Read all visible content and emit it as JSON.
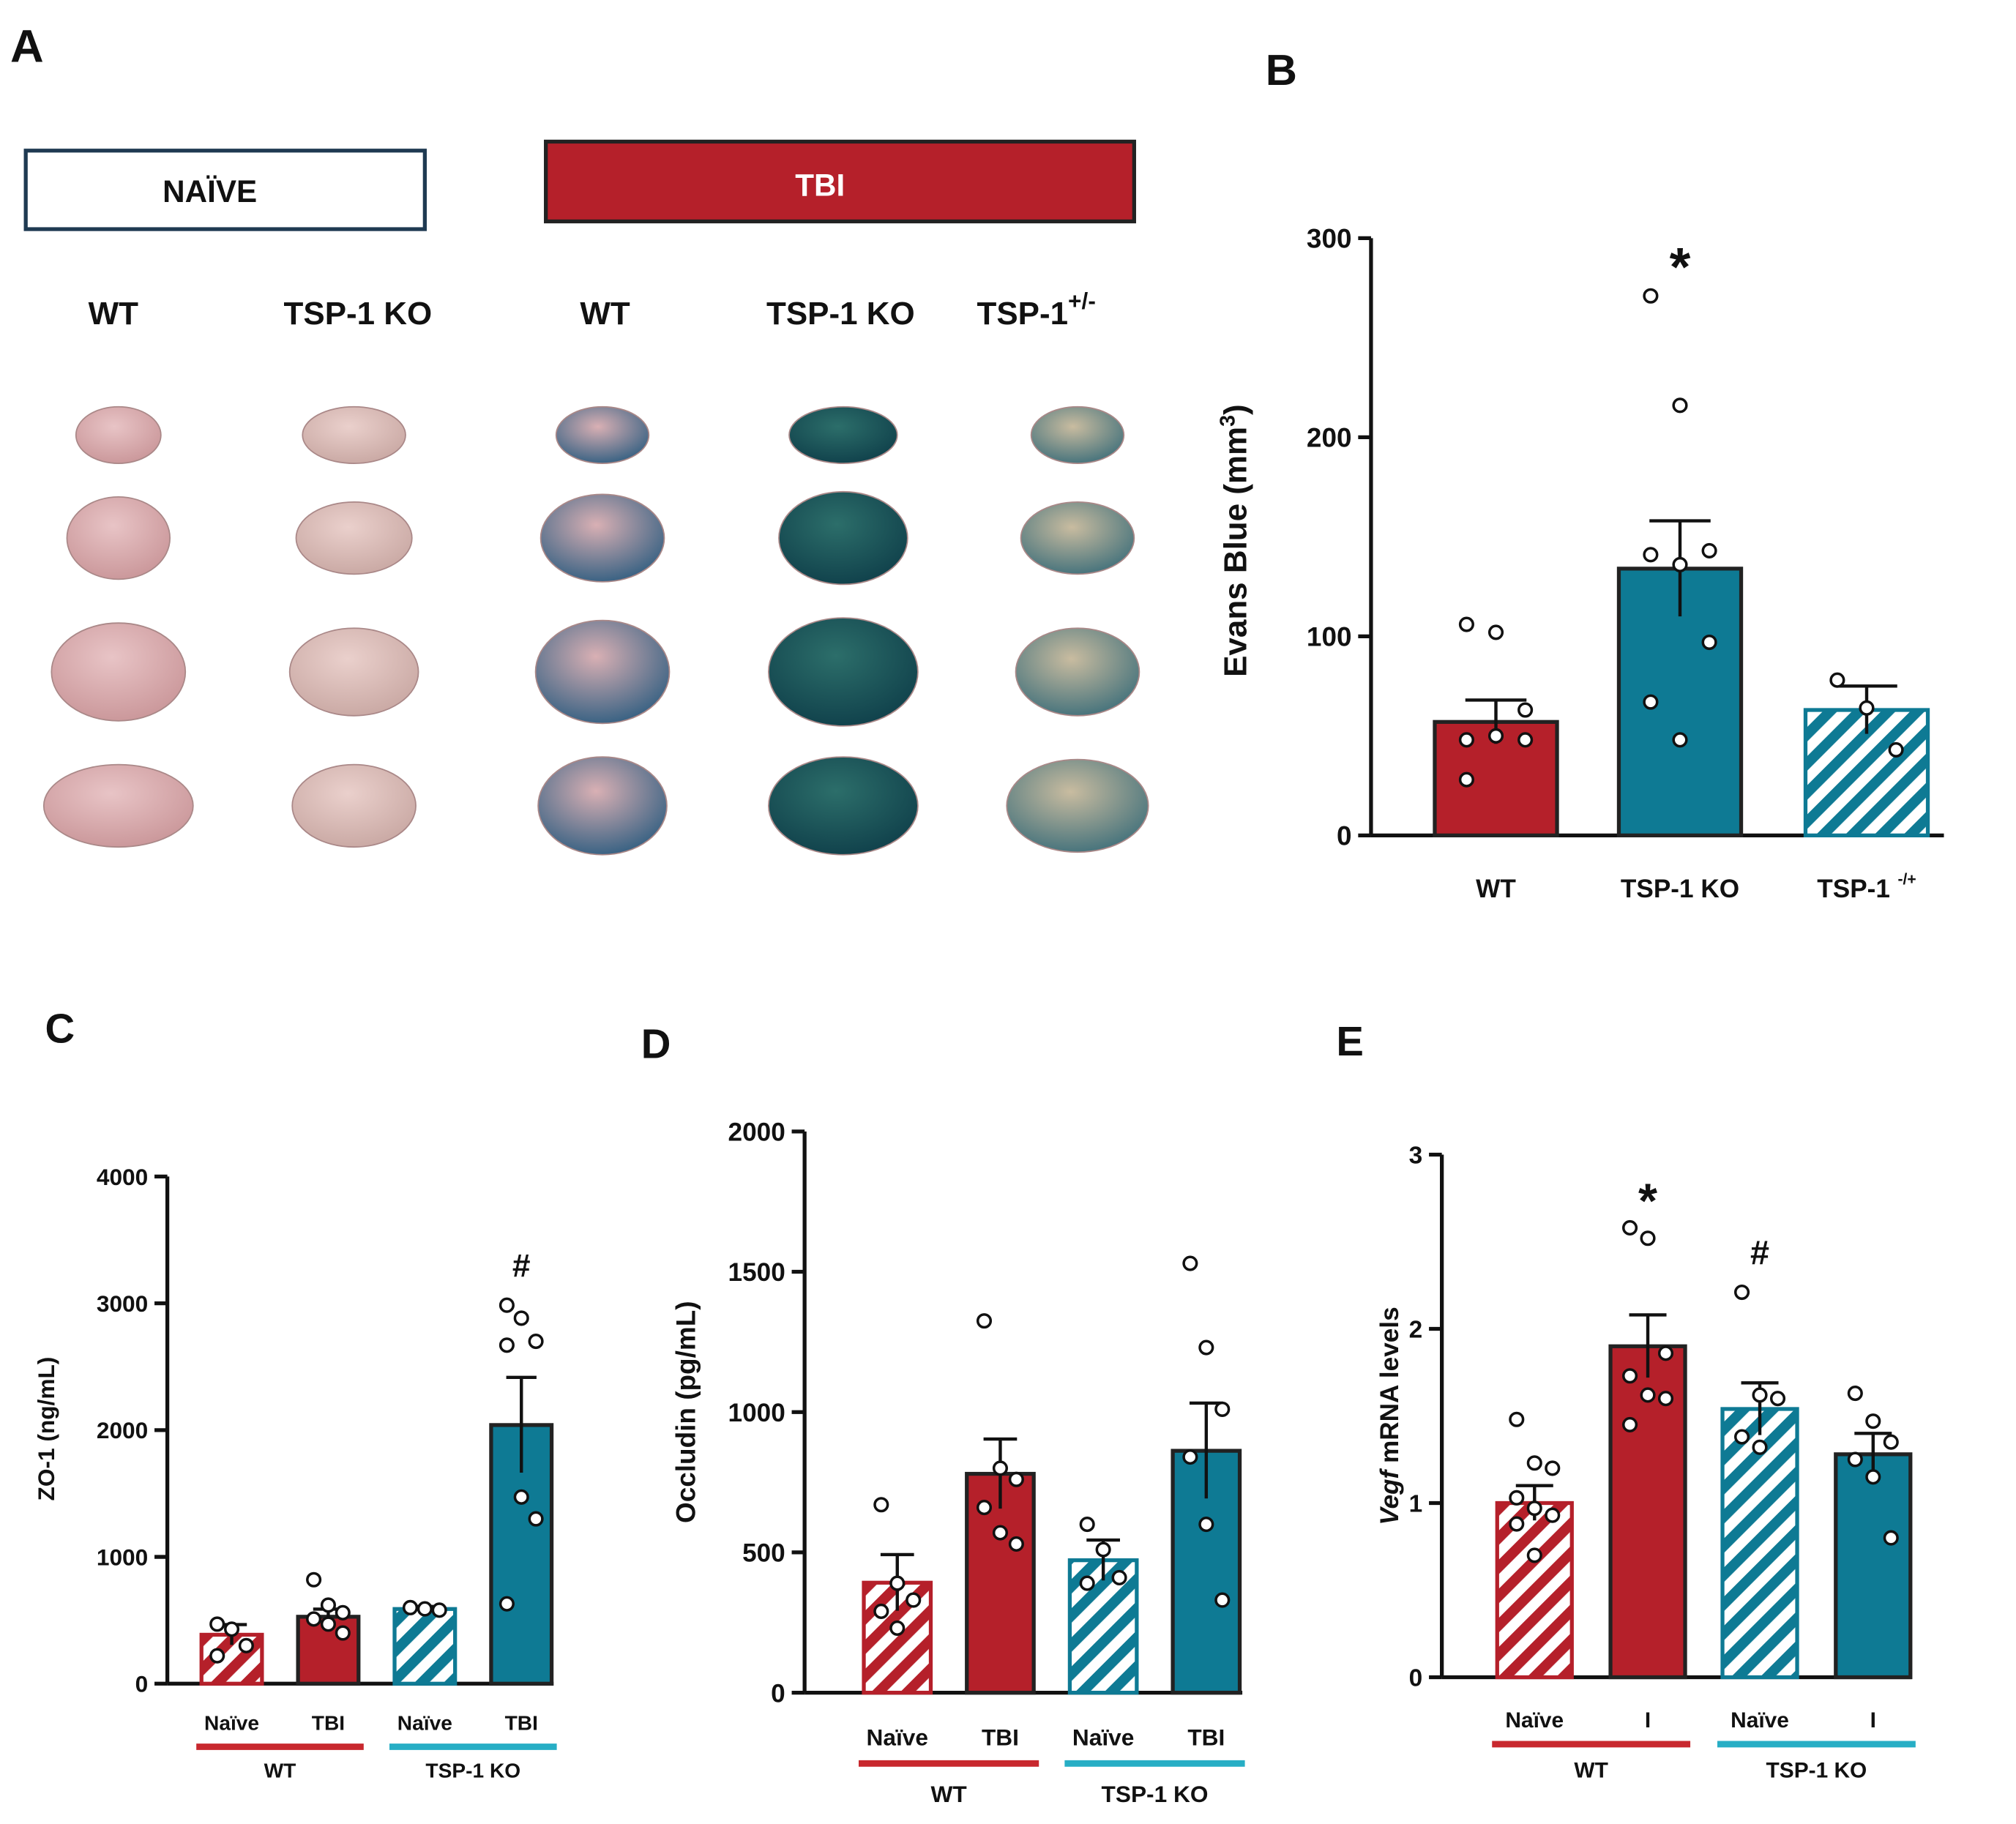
{
  "panel_a": {
    "label": "A",
    "naive_header": "NAÏVE",
    "tbi_header": "TBI",
    "columns": [
      "WT",
      "TSP-1 KO",
      "WT",
      "TSP-1 KO",
      "TSP-1"
    ],
    "column_sups": [
      null,
      null,
      null,
      null,
      "+/-"
    ]
  },
  "chart_data": [
    {
      "type": "bar",
      "panel": "B",
      "ylabel_parts": [
        {
          "text": "Evans Blue (mm"
        },
        {
          "text": "3",
          "sup": true
        },
        {
          "text": ")"
        }
      ],
      "categories": [
        "WT",
        "TSP-1 KO",
        "TSP-1"
      ],
      "category_sups": [
        null,
        null,
        "-/+"
      ],
      "values": [
        57,
        134,
        63
      ],
      "errors": [
        11,
        24,
        12
      ],
      "points": [
        [
          106,
          102,
          63,
          48,
          50,
          48,
          28
        ],
        [
          271,
          216,
          143,
          141,
          136,
          97,
          67,
          48
        ],
        [
          78,
          64,
          43
        ]
      ],
      "colors": [
        "#b5202a",
        "#0e7a94",
        "#0e7a94"
      ],
      "hatched": [
        false,
        false,
        true
      ],
      "annotations": [
        {
          "text": "*",
          "category": 1
        }
      ],
      "ylim": [
        0,
        300
      ],
      "yticks": [
        0,
        100,
        200,
        300
      ]
    },
    {
      "type": "bar",
      "panel": "C",
      "ylabel_parts": [
        {
          "text": "ZO-1 (ng/mL)"
        }
      ],
      "categories": [
        "Naïve",
        "TBI",
        "Naïve",
        "TBI"
      ],
      "values": [
        386,
        528,
        589,
        2040
      ],
      "errors": [
        80,
        60,
        20,
        376
      ],
      "points": [
        [
          470,
          430,
          300,
          220
        ],
        [
          820,
          620,
          560,
          510,
          470,
          400
        ],
        [
          600,
          590,
          580
        ],
        [
          2985,
          2883,
          2700,
          2670,
          1472,
          1300,
          630
        ]
      ],
      "colors": [
        "#b5202a",
        "#b5202a",
        "#0e7a94",
        "#0e7a94"
      ],
      "hatched": [
        true,
        false,
        true,
        false
      ],
      "annotations": [
        {
          "text": "#",
          "category": 3
        }
      ],
      "groups": [
        {
          "label": "WT",
          "span": [
            0,
            1
          ],
          "color": "#c8282e"
        },
        {
          "label": "TSP-1 KO",
          "span": [
            2,
            3
          ],
          "color": "#27aec5"
        }
      ],
      "ylim": [
        0,
        4000
      ],
      "yticks": [
        0,
        1000,
        2000,
        3000,
        4000
      ]
    },
    {
      "type": "bar",
      "panel": "D",
      "ylabel_parts": [
        {
          "text": "Occludin (pg/mL)"
        }
      ],
      "categories": [
        "Naïve",
        "TBI",
        "Naïve",
        "TBI"
      ],
      "values": [
        392,
        780,
        472,
        862
      ],
      "errors": [
        100,
        124,
        72,
        170
      ],
      "points": [
        [
          670,
          390,
          330,
          290,
          230
        ],
        [
          1325,
          800,
          760,
          660,
          570,
          530
        ],
        [
          600,
          510,
          410,
          390
        ],
        [
          1530,
          1230,
          1010,
          840,
          600,
          330
        ]
      ],
      "colors": [
        "#b5202a",
        "#b5202a",
        "#0e7a94",
        "#0e7a94"
      ],
      "hatched": [
        true,
        false,
        true,
        false
      ],
      "groups": [
        {
          "label": "WT",
          "span": [
            0,
            1
          ],
          "color": "#c8282e"
        },
        {
          "label": "TSP-1 KO",
          "span": [
            2,
            3
          ],
          "color": "#27aec5"
        }
      ],
      "ylim": [
        0,
        2000
      ],
      "yticks": [
        0,
        500,
        1000,
        1500,
        2000
      ]
    },
    {
      "type": "bar",
      "panel": "E",
      "ylabel_parts": [
        {
          "text": "Vegf",
          "italic": true
        },
        {
          "text": " mRNA levels"
        }
      ],
      "categories": [
        "Naïve",
        "I",
        "Naïve",
        "I"
      ],
      "values": [
        1.0,
        1.9,
        1.54,
        1.28
      ],
      "errors": [
        0.1,
        0.18,
        0.15,
        0.12
      ],
      "points": [
        [
          1.48,
          1.23,
          1.2,
          1.03,
          0.97,
          0.93,
          0.88,
          0.7
        ],
        [
          2.58,
          2.52,
          1.86,
          1.73,
          1.62,
          1.6,
          1.45
        ],
        [
          2.21,
          1.62,
          1.6,
          1.38,
          1.32
        ],
        [
          1.63,
          1.47,
          1.35,
          1.25,
          1.15,
          0.8
        ]
      ],
      "colors": [
        "#b5202a",
        "#b5202a",
        "#0e7a94",
        "#0e7a94"
      ],
      "hatched": [
        true,
        false,
        true,
        false
      ],
      "annotations": [
        {
          "text": "*",
          "category": 1
        },
        {
          "text": "#",
          "category": 2
        }
      ],
      "groups": [
        {
          "label": "WT",
          "span": [
            0,
            1
          ],
          "color": "#c8282e"
        },
        {
          "label": "TSP-1 KO",
          "span": [
            2,
            3
          ],
          "color": "#27aec5"
        }
      ],
      "ylim": [
        0,
        3
      ],
      "yticks": [
        0,
        1,
        2,
        3
      ]
    }
  ]
}
